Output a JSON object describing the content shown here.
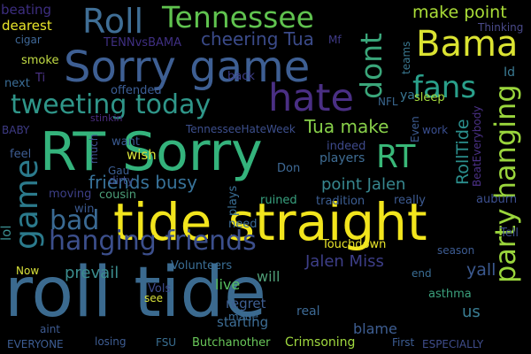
{
  "image": {
    "type": "word-cloud",
    "background": "#000000"
  },
  "words": [
    {
      "id": "roll-tide",
      "text": "roll tide",
      "color": "#3b6a8f"
    },
    {
      "id": "tide-straight",
      "text": "tide straight",
      "color": "#f2e51d"
    },
    {
      "id": "rt-sorry",
      "text": "RT Sorry",
      "color": "#34b37c"
    },
    {
      "id": "sorry-game",
      "text": "Sorry game",
      "color": "#3e5f93"
    },
    {
      "id": "hate",
      "text": "hate",
      "color": "#4a2f84"
    },
    {
      "id": "roll",
      "text": "Roll",
      "color": "#3f6e95"
    },
    {
      "id": "tennessee",
      "text": "Tennessee",
      "color": "#60c34f"
    },
    {
      "id": "bama",
      "text": "Bama",
      "color": "#dbe332"
    },
    {
      "id": "dont",
      "text": "dont",
      "color": "#3aa67a"
    },
    {
      "id": "fans",
      "text": "fans",
      "color": "#2aa08b"
    },
    {
      "id": "tweeting-today",
      "text": "tweeting today",
      "color": "#2f9689"
    },
    {
      "id": "rt",
      "text": "RT",
      "color": "#39b878"
    },
    {
      "id": "game",
      "text": "game",
      "color": "#2b7a8c"
    },
    {
      "id": "bad",
      "text": "bad",
      "color": "#3a6a93"
    },
    {
      "id": "hanging-friends",
      "text": "hanging friends",
      "color": "#3c4f8c"
    },
    {
      "id": "friends-busy",
      "text": "friends busy",
      "color": "#38739a"
    },
    {
      "id": "party-hanging",
      "text": "party hanging",
      "color": "#9ad53c"
    },
    {
      "id": "cheering-tua",
      "text": "cheering Tua",
      "color": "#3b4b8a"
    },
    {
      "id": "tua-make",
      "text": "Tua make",
      "color": "#88d04a"
    },
    {
      "id": "make-point",
      "text": "make point",
      "color": "#aadd38"
    },
    {
      "id": "point-jalen",
      "text": "point Jalen",
      "color": "#37878f"
    },
    {
      "id": "jalen-miss",
      "text": "Jalen Miss",
      "color": "#3d3e88"
    },
    {
      "id": "rolltide",
      "text": "RollTide",
      "color": "#2b8f8d"
    },
    {
      "id": "prevail",
      "text": "prevail",
      "color": "#3b8c8d"
    },
    {
      "id": "yall",
      "text": "yall",
      "color": "#3c5a90"
    },
    {
      "id": "us",
      "text": "us",
      "color": "#3a7e94"
    },
    {
      "id": "live",
      "text": "live",
      "color": "#57bf5f"
    },
    {
      "id": "will",
      "text": "will",
      "color": "#4f9e77"
    },
    {
      "id": "regret",
      "text": "regret",
      "color": "#3f5f93"
    },
    {
      "id": "starting",
      "text": "starting",
      "color": "#3d6d95"
    },
    {
      "id": "blame",
      "text": "blame",
      "color": "#3e5e92"
    },
    {
      "id": "crimsoning",
      "text": "Crimsoning",
      "color": "#a0d93f"
    },
    {
      "id": "butchanother",
      "text": "Butchanother",
      "color": "#6ac85a"
    },
    {
      "id": "lol",
      "text": "lol",
      "color": "#3b8e90"
    },
    {
      "id": "dearest",
      "text": "dearest",
      "color": "#e9e62a"
    },
    {
      "id": "beating",
      "text": "beating",
      "color": "#3d2e80"
    },
    {
      "id": "cigar",
      "text": "cigar",
      "color": "#3f6898"
    },
    {
      "id": "smoke",
      "text": "smoke",
      "color": "#c3dd45"
    },
    {
      "id": "next",
      "text": "next",
      "color": "#3a6d96"
    },
    {
      "id": "ti",
      "text": "Ti",
      "color": "#4a3285"
    },
    {
      "id": "tennvsbama",
      "text": "TENNvsBAMA",
      "color": "#3f2f82"
    },
    {
      "id": "mf",
      "text": "Mf",
      "color": "#3f3a86"
    },
    {
      "id": "teams",
      "text": "teams",
      "color": "#3a7890"
    },
    {
      "id": "thinking",
      "text": "Thinking",
      "color": "#4a4a8a"
    },
    {
      "id": "nfl",
      "text": "NFL",
      "color": "#3a678f"
    },
    {
      "id": "id",
      "text": "Id",
      "color": "#3a7a92"
    },
    {
      "id": "offended",
      "text": "offended",
      "color": "#3c5e95"
    },
    {
      "id": "back",
      "text": "back",
      "color": "#3e3f89"
    },
    {
      "id": "baby",
      "text": "BABY",
      "color": "#3e3b85"
    },
    {
      "id": "stinkin",
      "text": "stinkin",
      "color": "#4a2d7f"
    },
    {
      "id": "want",
      "text": "want",
      "color": "#3a5a91"
    },
    {
      "id": "tennesseehateweek",
      "text": "TennesseeHateWeek",
      "color": "#3d4f8d"
    },
    {
      "id": "ya",
      "text": "ya",
      "color": "#3a7894"
    },
    {
      "id": "sleep",
      "text": "sleep",
      "color": "#a7dc3d"
    },
    {
      "id": "work",
      "text": "work",
      "color": "#3a4f90"
    },
    {
      "id": "beateverybody",
      "text": "BeatEverybody",
      "color": "#4b3187"
    },
    {
      "id": "even",
      "text": "Even",
      "color": "#3d5d92"
    },
    {
      "id": "feel",
      "text": "feel",
      "color": "#3e5e94"
    },
    {
      "id": "much",
      "text": "much",
      "color": "#3f4f8d"
    },
    {
      "id": "wish",
      "text": "wish",
      "color": "#d8e23a"
    },
    {
      "id": "gau",
      "text": "Gau",
      "color": "#3c5f94"
    },
    {
      "id": "don",
      "text": "Don",
      "color": "#3f6a96"
    },
    {
      "id": "indeed",
      "text": "indeed",
      "color": "#3e4a8c"
    },
    {
      "id": "players",
      "text": "players",
      "color": "#3f6d94"
    },
    {
      "id": "dirty",
      "text": "dirty",
      "color": "#3e4d8d"
    },
    {
      "id": "cousin",
      "text": "cousin",
      "color": "#4da07a"
    },
    {
      "id": "moving",
      "text": "moving",
      "color": "#3d3f87"
    },
    {
      "id": "win",
      "text": "win",
      "color": "#3b5a90"
    },
    {
      "id": "plays",
      "text": "plays",
      "color": "#3a6f95"
    },
    {
      "id": "ruined",
      "text": "ruined",
      "color": "#38a17f"
    },
    {
      "id": "tradition",
      "text": "tradition",
      "color": "#3c5e93"
    },
    {
      "id": "really",
      "text": "really",
      "color": "#3d5b92"
    },
    {
      "id": "auburn",
      "text": "auburn",
      "color": "#3c4f8e"
    },
    {
      "id": "tell",
      "text": "Tell",
      "color": "#3d4d8c"
    },
    {
      "id": "need",
      "text": "need",
      "color": "#3b6b95"
    },
    {
      "id": "touchdown",
      "text": "Touchdown",
      "color": "#e9e52a"
    },
    {
      "id": "season",
      "text": "season",
      "color": "#3d5c93"
    },
    {
      "id": "now",
      "text": "Now",
      "color": "#d8e13a"
    },
    {
      "id": "volunteers",
      "text": "Volunteers",
      "color": "#3b6f96"
    },
    {
      "id": "end",
      "text": "end",
      "color": "#3a6e95"
    },
    {
      "id": "vols",
      "text": "Vols",
      "color": "#3f4b8b"
    },
    {
      "id": "asthma",
      "text": "asthma",
      "color": "#3ba07c"
    },
    {
      "id": "see",
      "text": "see",
      "color": "#d8e13a"
    },
    {
      "id": "made",
      "text": "made",
      "color": "#3a6a93"
    },
    {
      "id": "real",
      "text": "real",
      "color": "#3d6a95"
    },
    {
      "id": "aint",
      "text": "aint",
      "color": "#3e5b91"
    },
    {
      "id": "losing",
      "text": "losing",
      "color": "#3e5d93"
    },
    {
      "id": "everyone",
      "text": "EVERYONE",
      "color": "#3d5d93"
    },
    {
      "id": "fsu",
      "text": "FSU",
      "color": "#3a7093"
    },
    {
      "id": "first",
      "text": "First",
      "color": "#3d5d93"
    },
    {
      "id": "especially",
      "text": "ESPECIALLY",
      "color": "#3f4d8c"
    }
  ]
}
